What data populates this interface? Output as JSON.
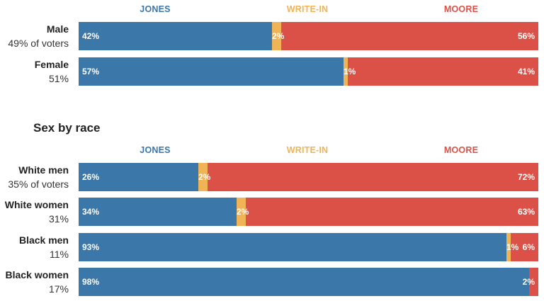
{
  "legend": {
    "jones": "JONES",
    "writein": "WRITE-IN",
    "moore": "MOORE"
  },
  "colors": {
    "jones": "#3b77a8",
    "writein": "#f0b356",
    "moore": "#dc5147"
  },
  "section2_title": "Sex by race",
  "chart_data": [
    {
      "type": "bar",
      "stacked": true,
      "orientation": "horizontal",
      "series_order": [
        "JONES",
        "WRITE-IN",
        "MOORE"
      ],
      "rows": [
        {
          "name": "Male",
          "sub": "49% of voters",
          "values": [
            42,
            2,
            56
          ],
          "labels": [
            "42%",
            "2%",
            "56%"
          ]
        },
        {
          "name": "Female",
          "sub": "51%",
          "values": [
            57,
            1,
            41
          ],
          "labels": [
            "57%",
            "1%",
            "41%"
          ]
        }
      ]
    },
    {
      "type": "bar",
      "stacked": true,
      "orientation": "horizontal",
      "series_order": [
        "JONES",
        "WRITE-IN",
        "MOORE"
      ],
      "rows": [
        {
          "name": "White men",
          "sub": "35% of voters",
          "values": [
            26,
            2,
            72
          ],
          "labels": [
            "26%",
            "2%",
            "72%"
          ]
        },
        {
          "name": "White women",
          "sub": "31%",
          "values": [
            34,
            2,
            63
          ],
          "labels": [
            "34%",
            "2%",
            "63%"
          ]
        },
        {
          "name": "Black men",
          "sub": "11%",
          "values": [
            93,
            1,
            6
          ],
          "labels": [
            "93%",
            "1%",
            "6%"
          ]
        },
        {
          "name": "Black women",
          "sub": "17%",
          "values": [
            98,
            0,
            2
          ],
          "labels": [
            "98%",
            "",
            "2%"
          ]
        }
      ]
    }
  ]
}
